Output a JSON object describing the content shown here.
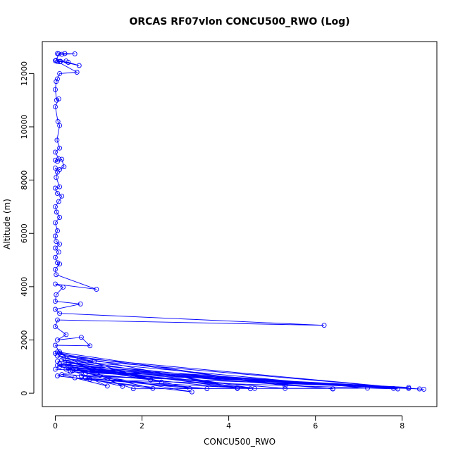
{
  "chart_data": {
    "type": "line",
    "title": "ORCAS RF07vlon CONCU500_RWO (Log)",
    "xlabel": "CONCU500_RWO",
    "ylabel": "Altitude (m)",
    "xlim": [
      -0.3,
      8.8
    ],
    "ylim": [
      -500,
      13200
    ],
    "x_ticks": [
      "0",
      "2",
      "4",
      "6",
      "8"
    ],
    "y_ticks": [
      "0",
      "2000",
      "4000",
      "6000",
      "8000",
      "10000",
      "12000"
    ],
    "grid": false,
    "markers": "open-circle",
    "series_color": "#0000ff",
    "series": [
      {
        "points": [
          [
            0.05,
            12750
          ],
          [
            0.15,
            12720
          ],
          [
            0.45,
            12740
          ],
          [
            0.22,
            12750
          ],
          [
            0.08,
            12740
          ],
          [
            0.02,
            12500
          ],
          [
            0.1,
            12450
          ],
          [
            0.3,
            12420
          ],
          [
            0.55,
            12300
          ],
          [
            0.12,
            12460
          ],
          [
            0.0,
            12480
          ],
          [
            0.25,
            12470
          ],
          [
            0.05,
            12450
          ],
          [
            0.5,
            12050
          ],
          [
            0.1,
            12000
          ],
          [
            0.05,
            11800
          ],
          [
            0.02,
            11700
          ],
          [
            0.0,
            11400
          ],
          [
            0.03,
            11000
          ],
          [
            0.08,
            11050
          ],
          [
            0.0,
            10750
          ],
          [
            0.06,
            10200
          ],
          [
            0.1,
            10050
          ],
          [
            0.04,
            9500
          ],
          [
            0.1,
            9200
          ],
          [
            0.0,
            9050
          ],
          [
            0.08,
            8800
          ],
          [
            0.0,
            8750
          ],
          [
            0.05,
            8700
          ],
          [
            0.15,
            8780
          ],
          [
            0.2,
            8500
          ],
          [
            0.1,
            8400
          ],
          [
            0.0,
            8450
          ],
          [
            0.05,
            8300
          ],
          [
            0.02,
            8100
          ],
          [
            0.1,
            7750
          ],
          [
            0.0,
            7700
          ],
          [
            0.05,
            7500
          ],
          [
            0.15,
            7400
          ],
          [
            0.08,
            7200
          ],
          [
            0.0,
            7000
          ],
          [
            0.03,
            6800
          ],
          [
            0.1,
            6600
          ],
          [
            0.0,
            6400
          ],
          [
            0.05,
            6100
          ],
          [
            0.0,
            5900
          ],
          [
            0.02,
            5700
          ],
          [
            0.1,
            5600
          ],
          [
            0.0,
            5450
          ],
          [
            0.08,
            5300
          ],
          [
            0.0,
            5100
          ],
          [
            0.05,
            4900
          ],
          [
            0.1,
            4850
          ],
          [
            0.0,
            4650
          ],
          [
            0.02,
            4450
          ],
          [
            0.95,
            3900
          ],
          [
            0.0,
            4100
          ],
          [
            0.18,
            3980
          ],
          [
            0.02,
            3700
          ],
          [
            0.0,
            3450
          ],
          [
            0.58,
            3350
          ],
          [
            0.0,
            3150
          ],
          [
            0.1,
            3000
          ],
          [
            6.2,
            2550
          ],
          [
            0.05,
            2750
          ],
          [
            0.0,
            2500
          ],
          [
            0.25,
            2200
          ],
          [
            0.05,
            2000
          ],
          [
            0.6,
            2100
          ],
          [
            0.8,
            1780
          ],
          [
            0.0,
            1800
          ],
          [
            0.1,
            1550
          ],
          [
            0.0,
            1500
          ],
          [
            0.55,
            1300
          ],
          [
            0.9,
            1200
          ],
          [
            0.05,
            1050
          ],
          [
            0.2,
            1050
          ],
          [
            7.8,
            180
          ],
          [
            0.0,
            900
          ],
          [
            8.5,
            150
          ],
          [
            0.35,
            800
          ],
          [
            0.05,
            650
          ],
          [
            3.15,
            50
          ],
          [
            0.7,
            750
          ],
          [
            4.2,
            180
          ],
          [
            0.1,
            1100
          ],
          [
            6.4,
            170
          ],
          [
            0.3,
            950
          ],
          [
            8.4,
            160
          ],
          [
            0.15,
            700
          ],
          [
            1.2,
            270
          ],
          [
            0.4,
            850
          ],
          [
            5.3,
            180
          ],
          [
            0.25,
            900
          ],
          [
            8.15,
            220
          ],
          [
            0.6,
            650
          ],
          [
            3.5,
            170
          ],
          [
            0.45,
            580
          ],
          [
            2.25,
            180
          ],
          [
            0.1,
            1000
          ],
          [
            7.9,
            160
          ],
          [
            0.8,
            520
          ],
          [
            4.5,
            170
          ],
          [
            0.05,
            1200
          ],
          [
            6.4,
            160
          ],
          [
            0.3,
            1150
          ],
          [
            2.45,
            420
          ],
          [
            0.15,
            1250
          ],
          [
            7.2,
            190
          ],
          [
            1.8,
            170
          ],
          [
            0.5,
            900
          ],
          [
            4.6,
            180
          ],
          [
            0.2,
            1300
          ],
          [
            8.15,
            180
          ],
          [
            0.05,
            1400
          ],
          [
            3.1,
            180
          ],
          [
            0.7,
            580
          ],
          [
            1.55,
            260
          ],
          [
            0.1,
            1500
          ],
          [
            4.2,
            200
          ],
          [
            0.35,
            1000
          ],
          [
            2.2,
            500
          ],
          [
            0.05,
            1550
          ],
          [
            5.3,
            280
          ],
          [
            0.0,
            1500
          ]
        ]
      }
    ]
  }
}
